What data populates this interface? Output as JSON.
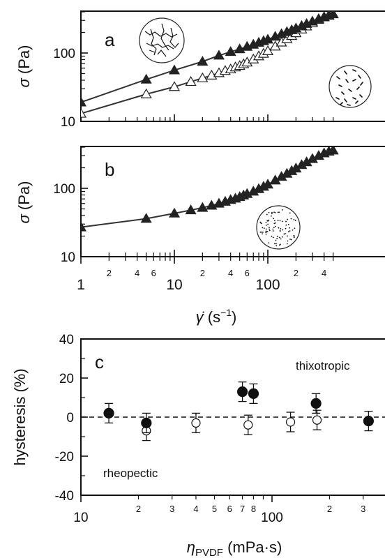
{
  "chart_data": [
    {
      "panel": "a",
      "type": "line",
      "x_scale": "log",
      "y_scale": "log",
      "xlim": [
        1,
        500
      ],
      "ylim": [
        10,
        400
      ],
      "ylabel_symbol": "σ",
      "ylabel_unit": "(Pa)",
      "yticks": [
        10,
        100
      ],
      "series": [
        {
          "marker": "filled-triangle",
          "x": [
            1,
            5,
            10,
            20,
            30,
            40,
            50,
            60,
            70,
            80,
            90,
            100,
            120,
            140,
            160,
            180,
            200,
            230,
            260,
            300,
            350,
            400,
            450,
            500
          ],
          "y": [
            19,
            41,
            56,
            75,
            92,
            104,
            114,
            124,
            133,
            142,
            150,
            158,
            174,
            190,
            204,
            217,
            230,
            250,
            268,
            290,
            316,
            338,
            356,
            372
          ]
        },
        {
          "marker": "open-triangle",
          "x": [
            1,
            5,
            10,
            15,
            20,
            25,
            30,
            35,
            40,
            45,
            50,
            55,
            60,
            70,
            80,
            90,
            100,
            120,
            140,
            160,
            180,
            200,
            230,
            260,
            300,
            350,
            400,
            450,
            500
          ],
          "y": [
            13,
            25,
            32,
            38,
            43,
            47,
            51,
            55,
            58,
            62,
            65,
            69,
            73,
            81,
            90,
            98,
            107,
            125,
            143,
            161,
            179,
            196,
            222,
            246,
            275,
            308,
            334,
            352,
            370
          ]
        }
      ]
    },
    {
      "panel": "b",
      "type": "line",
      "x_scale": "log",
      "y_scale": "log",
      "xlim": [
        1,
        500
      ],
      "ylim": [
        10,
        400
      ],
      "ylabel_symbol": "σ",
      "ylabel_unit": "(Pa)",
      "xlabel_symbol": "γ̇",
      "xlabel_unit": "(s",
      "xlabel_exp": "−1",
      "xlabel_close": ")",
      "yticks": [
        10,
        100
      ],
      "xticks_major": [
        1,
        10,
        100
      ],
      "xticks_minor_labeled": [
        2,
        4,
        6,
        20,
        40,
        60,
        200,
        400
      ],
      "minor_labels": [
        "2",
        "4",
        "6",
        "2",
        "4",
        "6",
        "2",
        "4"
      ],
      "series": [
        {
          "marker": "filled-triangle",
          "x": [
            1,
            5,
            10,
            15,
            20,
            25,
            30,
            35,
            40,
            45,
            50,
            55,
            60,
            70,
            80,
            90,
            100,
            120,
            140,
            160,
            180,
            200,
            230,
            260,
            300,
            350,
            400,
            450,
            500
          ],
          "y": [
            27,
            36,
            43,
            48,
            52,
            56,
            60,
            64,
            68,
            71,
            75,
            79,
            83,
            90,
            98,
            106,
            114,
            131,
            148,
            164,
            180,
            196,
            220,
            242,
            270,
            300,
            326,
            346,
            360
          ]
        }
      ]
    },
    {
      "panel": "c",
      "type": "scatter",
      "x_scale": "log",
      "xlim": [
        10,
        400
      ],
      "ylim": [
        -40,
        40
      ],
      "yticks": [
        -40,
        -20,
        0,
        20,
        40
      ],
      "ylabel": "hysteresis (%)",
      "xlabel_symbol": "η",
      "xlabel_sub": "PVDF",
      "xlabel_unit": " (mPa·s)",
      "xticks_major": [
        10,
        100
      ],
      "xticks_minor_labeled": [
        20,
        30,
        40,
        50,
        60,
        70,
        80,
        200,
        300
      ],
      "minor_labels": [
        "2",
        "3",
        "4",
        "5",
        "6",
        "7",
        "8",
        "2",
        "3"
      ],
      "annotations": [
        "thixotropic",
        "rheopectic"
      ],
      "series": [
        {
          "marker": "filled-circle",
          "x": [
            14,
            22,
            70,
            80,
            170,
            320
          ],
          "y": [
            2,
            -3,
            13,
            12,
            7,
            -2
          ],
          "err": [
            5,
            5,
            5,
            5,
            5,
            5
          ]
        },
        {
          "marker": "open-circle",
          "x": [
            22,
            40,
            75,
            125,
            172
          ],
          "y": [
            -7,
            -3,
            -4,
            -2.5,
            -1.5
          ],
          "err": [
            5,
            5,
            5,
            5,
            5
          ]
        }
      ]
    }
  ]
}
